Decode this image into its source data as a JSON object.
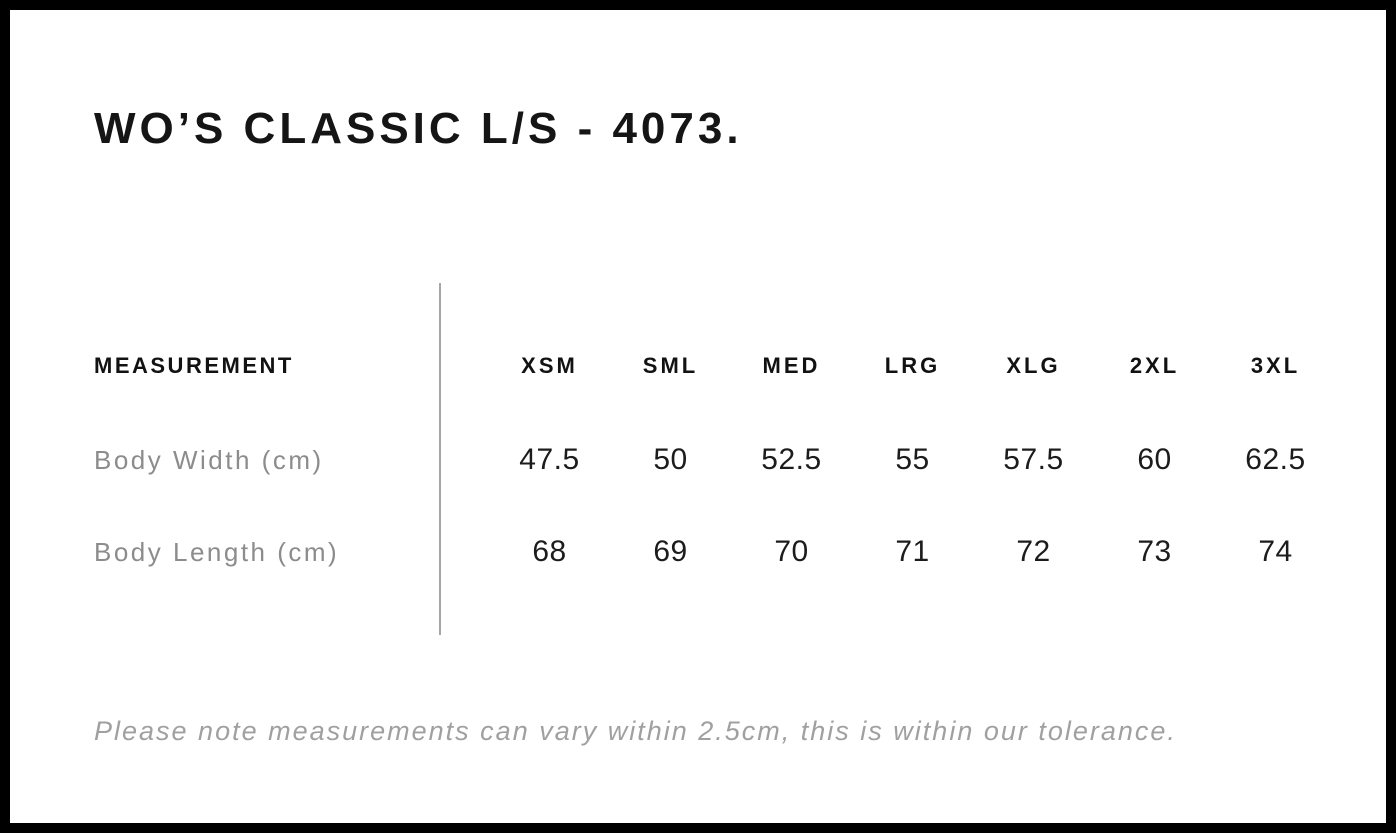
{
  "header": {
    "title": "WO’S CLASSIC L/S - 4073."
  },
  "size_chart": {
    "measurement_header": "MEASUREMENT",
    "sizes": [
      "XSM",
      "SML",
      "MED",
      "LRG",
      "XLG",
      "2XL",
      "3XL"
    ],
    "rows": [
      {
        "label": "Body Width (cm)",
        "values": [
          "47.5",
          "50",
          "52.5",
          "55",
          "57.5",
          "60",
          "62.5"
        ]
      },
      {
        "label": "Body Length (cm)",
        "values": [
          "68",
          "69",
          "70",
          "71",
          "72",
          "73",
          "74"
        ]
      }
    ]
  },
  "footer": {
    "tolerance_note": "Please note measurements can vary within 2.5cm, this is within our tolerance."
  },
  "colors": {
    "frame_border": "#000000",
    "background": "#ffffff",
    "heading_text": "#151515",
    "value_text": "#1c1c1c",
    "label_text": "#8c8c8c",
    "note_text": "#a0a0a0",
    "divider": "#a6a6a6"
  },
  "chart_data": {
    "type": "table",
    "title": "WO’S CLASSIC L/S - 4073.",
    "columns": [
      "MEASUREMENT",
      "XSM",
      "SML",
      "MED",
      "LRG",
      "XLG",
      "2XL",
      "3XL"
    ],
    "rows": [
      [
        "Body Width (cm)",
        47.5,
        50,
        52.5,
        55,
        57.5,
        60,
        62.5
      ],
      [
        "Body Length (cm)",
        68,
        69,
        70,
        71,
        72,
        73,
        74
      ]
    ],
    "footnote": "Please note measurements can vary within 2.5cm, this is within our tolerance."
  }
}
